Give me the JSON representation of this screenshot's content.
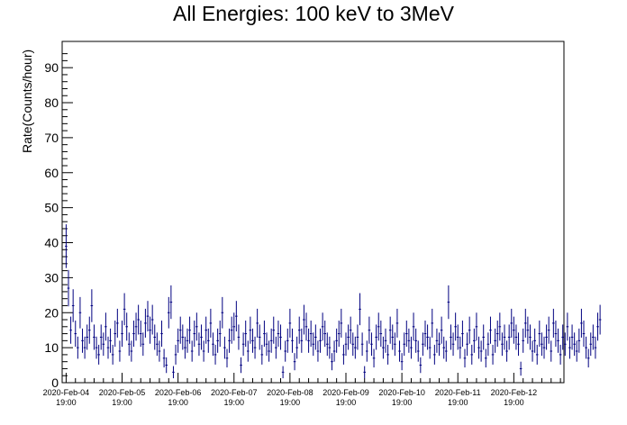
{
  "chart_data": {
    "type": "scatter",
    "title": "All Energies:  100 keV to 3MeV",
    "xlabel": "",
    "ylabel": "Rate(Counts/hour)",
    "ylim": [
      0,
      97.5
    ],
    "y_ticks": [
      0,
      10,
      20,
      30,
      40,
      50,
      60,
      70,
      80,
      90
    ],
    "x_ticks": [
      {
        "date": "2020-Feb-04",
        "time": "19:00",
        "hour": 0
      },
      {
        "date": "2020-Feb-05",
        "time": "19:00",
        "hour": 24
      },
      {
        "date": "2020-Feb-06",
        "time": "19:00",
        "hour": 48
      },
      {
        "date": "2020-Feb-07",
        "time": "19:00",
        "hour": 72
      },
      {
        "date": "2020-Feb-08",
        "time": "19:00",
        "hour": 96
      },
      {
        "date": "2020-Feb-09",
        "time": "19:00",
        "hour": 120
      },
      {
        "date": "2020-Feb-10",
        "time": "19:00",
        "hour": 144
      },
      {
        "date": "2020-Feb-11",
        "time": "19:00",
        "hour": 168
      },
      {
        "date": "2020-Feb-12",
        "time": "19:00",
        "hour": 192
      }
    ],
    "xlim_hours": [
      -1.7,
      213.5
    ],
    "grid": false,
    "marker_color": "#000080",
    "values": [
      39,
      27,
      15,
      22,
      14,
      10,
      20,
      12,
      10,
      13,
      15,
      22,
      13,
      10,
      8,
      13,
      11,
      16,
      10,
      12,
      8,
      14,
      17,
      9,
      14,
      21,
      16,
      11,
      9,
      14,
      16,
      18,
      14,
      11,
      17,
      19,
      15,
      18,
      13,
      11,
      9,
      14,
      7,
      5,
      20,
      23,
      3,
      8,
      12,
      15,
      13,
      10,
      12,
      15,
      9,
      14,
      16,
      11,
      13,
      9,
      15,
      12,
      17,
      11,
      8,
      12,
      14,
      20,
      10,
      7,
      12,
      15,
      16,
      19,
      13,
      5,
      11,
      14,
      9,
      15,
      12,
      10,
      17,
      13,
      8,
      14,
      11,
      9,
      12,
      15,
      10,
      14,
      13,
      3,
      9,
      12,
      17,
      12,
      6,
      10,
      15,
      12,
      18,
      16,
      12,
      14,
      11,
      13,
      9,
      12,
      16,
      14,
      11,
      10,
      6,
      9,
      12,
      14,
      17,
      8,
      11,
      13,
      15,
      11,
      10,
      13,
      21,
      11,
      3,
      9,
      15,
      11,
      7,
      13,
      16,
      14,
      10,
      12,
      8,
      15,
      13,
      11,
      17,
      9,
      6,
      11,
      14,
      12,
      10,
      16,
      12,
      9,
      5,
      11,
      14,
      13,
      10,
      17,
      8,
      12,
      11,
      15,
      10,
      9,
      23,
      13,
      11,
      16,
      13,
      10,
      14,
      7,
      11,
      15,
      8,
      12,
      16,
      10,
      9,
      13,
      7,
      11,
      15,
      8,
      12,
      14,
      16,
      11,
      13,
      9,
      13,
      17,
      15,
      13,
      11,
      4,
      12,
      17,
      15,
      13,
      9,
      12,
      8,
      14,
      11,
      10,
      13,
      15,
      9,
      17,
      14,
      12,
      8,
      13,
      11,
      16,
      10,
      13,
      11,
      9,
      12,
      17,
      14,
      10,
      7,
      11,
      13,
      10,
      16,
      18
    ]
  }
}
